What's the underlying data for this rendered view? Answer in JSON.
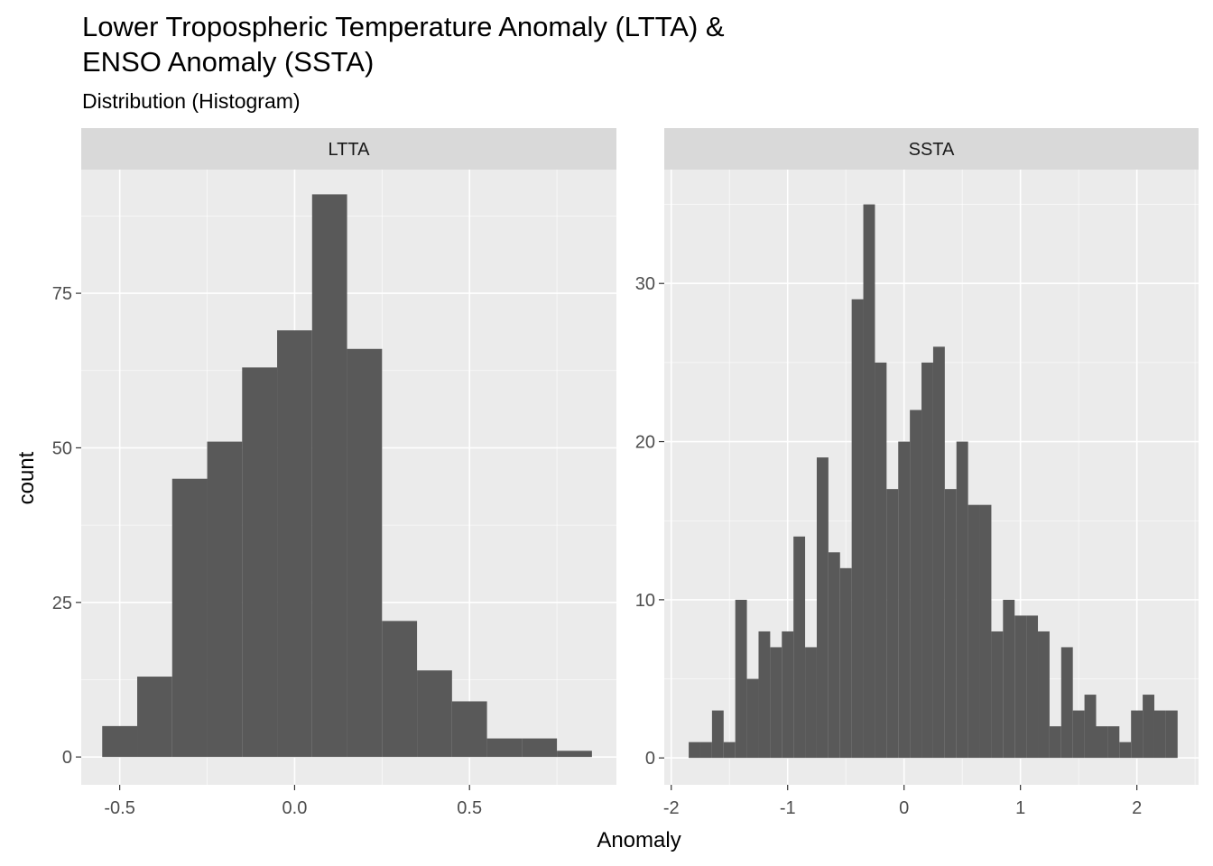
{
  "title": "Lower Tropospheric Temperature Anomaly (LTTA) &\nENSO Anomaly (SSTA)",
  "subtitle": "Distribution (Histogram)",
  "colors": {
    "panel_bg": "#ebebeb",
    "strip_bg": "#d9d9d9",
    "bar_fill": "#595959",
    "grid": "#ffffff"
  },
  "chart_data": [
    {
      "type": "bar",
      "panel": "LTTA",
      "xlabel": "Anomaly",
      "ylabel": "count",
      "xlim": [
        -0.61,
        0.92
      ],
      "ylim": [
        -4.5,
        95
      ],
      "x_ticks": [
        -0.5,
        0.0,
        0.5
      ],
      "x_tick_labels": [
        "-0.5",
        "0.0",
        "0.5"
      ],
      "y_ticks": [
        0,
        25,
        50,
        75
      ],
      "y_tick_labels": [
        "0",
        "25",
        "50",
        "75"
      ],
      "bin_width": 0.1,
      "bins": [
        {
          "x0": -0.55,
          "x1": -0.45,
          "count": 5
        },
        {
          "x0": -0.45,
          "x1": -0.35,
          "count": 13
        },
        {
          "x0": -0.35,
          "x1": -0.25,
          "count": 45
        },
        {
          "x0": -0.25,
          "x1": -0.15,
          "count": 51
        },
        {
          "x0": -0.15,
          "x1": -0.05,
          "count": 63
        },
        {
          "x0": -0.05,
          "x1": 0.05,
          "count": 69
        },
        {
          "x0": 0.05,
          "x1": 0.15,
          "count": 91
        },
        {
          "x0": 0.15,
          "x1": 0.25,
          "count": 66
        },
        {
          "x0": 0.25,
          "x1": 0.35,
          "count": 22
        },
        {
          "x0": 0.35,
          "x1": 0.45,
          "count": 14
        },
        {
          "x0": 0.45,
          "x1": 0.55,
          "count": 9
        },
        {
          "x0": 0.55,
          "x1": 0.65,
          "count": 3
        },
        {
          "x0": 0.65,
          "x1": 0.75,
          "count": 3
        },
        {
          "x0": 0.75,
          "x1": 0.85,
          "count": 1
        }
      ],
      "grid": true
    },
    {
      "type": "bar",
      "panel": "SSTA",
      "xlabel": "Anomaly",
      "ylabel": "count",
      "xlim": [
        -2.06,
        2.53
      ],
      "ylim": [
        -1.7,
        37.2
      ],
      "x_ticks": [
        -2,
        -1,
        0,
        1,
        2
      ],
      "x_tick_labels": [
        "-2",
        "-1",
        "0",
        "1",
        "2"
      ],
      "y_ticks": [
        0,
        10,
        20,
        30
      ],
      "y_tick_labels": [
        "0",
        "10",
        "20",
        "30"
      ],
      "bin_width": 0.1,
      "bins": [
        {
          "x0": -1.85,
          "x1": -1.75,
          "count": 1
        },
        {
          "x0": -1.75,
          "x1": -1.65,
          "count": 1
        },
        {
          "x0": -1.65,
          "x1": -1.55,
          "count": 3
        },
        {
          "x0": -1.55,
          "x1": -1.45,
          "count": 1
        },
        {
          "x0": -1.45,
          "x1": -1.35,
          "count": 10
        },
        {
          "x0": -1.35,
          "x1": -1.25,
          "count": 5
        },
        {
          "x0": -1.25,
          "x1": -1.15,
          "count": 8
        },
        {
          "x0": -1.15,
          "x1": -1.05,
          "count": 7
        },
        {
          "x0": -1.05,
          "x1": -0.95,
          "count": 8
        },
        {
          "x0": -0.95,
          "x1": -0.85,
          "count": 14
        },
        {
          "x0": -0.85,
          "x1": -0.75,
          "count": 7
        },
        {
          "x0": -0.75,
          "x1": -0.65,
          "count": 19
        },
        {
          "x0": -0.65,
          "x1": -0.55,
          "count": 13
        },
        {
          "x0": -0.55,
          "x1": -0.45,
          "count": 12
        },
        {
          "x0": -0.45,
          "x1": -0.35,
          "count": 29
        },
        {
          "x0": -0.35,
          "x1": -0.25,
          "count": 35
        },
        {
          "x0": -0.25,
          "x1": -0.15,
          "count": 25
        },
        {
          "x0": -0.15,
          "x1": -0.05,
          "count": 17
        },
        {
          "x0": -0.05,
          "x1": 0.05,
          "count": 20
        },
        {
          "x0": 0.05,
          "x1": 0.15,
          "count": 22
        },
        {
          "x0": 0.15,
          "x1": 0.25,
          "count": 25
        },
        {
          "x0": 0.25,
          "x1": 0.35,
          "count": 26
        },
        {
          "x0": 0.35,
          "x1": 0.45,
          "count": 17
        },
        {
          "x0": 0.45,
          "x1": 0.55,
          "count": 20
        },
        {
          "x0": 0.55,
          "x1": 0.65,
          "count": 16
        },
        {
          "x0": 0.65,
          "x1": 0.75,
          "count": 16
        },
        {
          "x0": 0.75,
          "x1": 0.85,
          "count": 8
        },
        {
          "x0": 0.85,
          "x1": 0.95,
          "count": 10
        },
        {
          "x0": 0.95,
          "x1": 1.05,
          "count": 9
        },
        {
          "x0": 1.05,
          "x1": 1.15,
          "count": 9
        },
        {
          "x0": 1.15,
          "x1": 1.25,
          "count": 8
        },
        {
          "x0": 1.25,
          "x1": 1.35,
          "count": 2
        },
        {
          "x0": 1.35,
          "x1": 1.45,
          "count": 7
        },
        {
          "x0": 1.45,
          "x1": 1.55,
          "count": 3
        },
        {
          "x0": 1.55,
          "x1": 1.65,
          "count": 4
        },
        {
          "x0": 1.65,
          "x1": 1.75,
          "count": 2
        },
        {
          "x0": 1.75,
          "x1": 1.85,
          "count": 2
        },
        {
          "x0": 1.85,
          "x1": 1.95,
          "count": 1
        },
        {
          "x0": 1.95,
          "x1": 2.05,
          "count": 3
        },
        {
          "x0": 2.05,
          "x1": 2.15,
          "count": 4
        },
        {
          "x0": 2.15,
          "x1": 2.25,
          "count": 3
        },
        {
          "x0": 2.25,
          "x1": 2.35,
          "count": 3
        }
      ],
      "grid": true
    }
  ]
}
